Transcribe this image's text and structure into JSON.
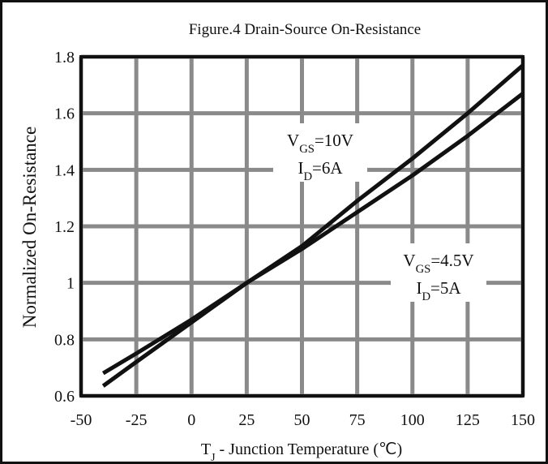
{
  "chart_data": {
    "type": "line",
    "title": "Figure.4 Drain-Source On-Resistance",
    "ylabel": "Normalized On-Resistance",
    "xlabel": {
      "main": "T",
      "sub": "J",
      "rest": " - Junction Temperature (℃)"
    },
    "xlim": [
      -50,
      150
    ],
    "xticks": [
      -50,
      -25,
      0,
      25,
      50,
      75,
      100,
      125,
      150
    ],
    "ylim": [
      0.6,
      1.8
    ],
    "yticks": [
      0.6,
      0.8,
      1,
      1.2,
      1.4,
      1.6,
      1.8
    ],
    "grid": true,
    "series": [
      {
        "color": "#111111",
        "x": [
          -40,
          -25,
          0,
          25,
          50,
          75,
          100,
          125,
          150
        ],
        "values": [
          0.635,
          0.72,
          0.86,
          1.0,
          1.13,
          1.29,
          1.44,
          1.6,
          1.77
        ]
      },
      {
        "color": "#111111",
        "x": [
          -40,
          -25,
          0,
          25,
          50,
          75,
          100,
          125,
          150
        ],
        "values": [
          0.68,
          0.75,
          0.87,
          1.0,
          1.12,
          1.25,
          1.38,
          1.52,
          1.67
        ]
      }
    ],
    "annotations": [
      [
        {
          "main": "V",
          "sub": "GS",
          "rest": "=10V"
        },
        {
          "main": "I",
          "sub": "D",
          "rest": "=6A"
        }
      ],
      [
        {
          "main": "V",
          "sub": "GS",
          "rest": "=4.5V"
        },
        {
          "main": "I",
          "sub": "D",
          "rest": "=5A"
        }
      ]
    ]
  }
}
